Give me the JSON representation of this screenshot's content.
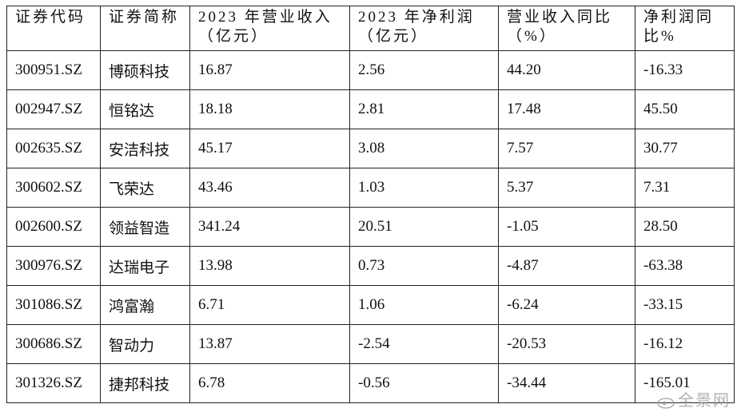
{
  "table": {
    "header": [
      [
        "证券代码"
      ],
      [
        "证券简称"
      ],
      [
        "2023 年营业收入",
        "（亿元）"
      ],
      [
        "2023 年净利润",
        "（亿元）"
      ],
      [
        "营业收入同比",
        "（%）"
      ],
      [
        "净利润同",
        "比%"
      ]
    ],
    "rows": [
      [
        "300951.SZ",
        "博硕科技",
        "16.87",
        "2.56",
        "44.20",
        "-16.33"
      ],
      [
        "002947.SZ",
        "恒铭达",
        "18.18",
        "2.81",
        "17.48",
        "45.50"
      ],
      [
        "002635.SZ",
        "安洁科技",
        "45.17",
        "3.08",
        "7.57",
        "30.77"
      ],
      [
        "300602.SZ",
        "飞荣达",
        "43.46",
        "1.03",
        "5.37",
        "7.31"
      ],
      [
        "002600.SZ",
        "领益智造",
        "341.24",
        "20.51",
        "-1.05",
        "28.50"
      ],
      [
        "300976.SZ",
        "达瑞电子",
        "13.98",
        "0.73",
        "-4.87",
        "-63.38"
      ],
      [
        "301086.SZ",
        "鸿富瀚",
        "6.71",
        "1.06",
        "-6.24",
        "-33.15"
      ],
      [
        "300686.SZ",
        "智动力",
        "13.87",
        "-2.54",
        "-20.53",
        "-16.12"
      ],
      [
        "301326.SZ",
        "捷邦科技",
        "6.78",
        "-0.56",
        "-34.44",
        "-165.01"
      ]
    ]
  },
  "watermark": "全景网"
}
